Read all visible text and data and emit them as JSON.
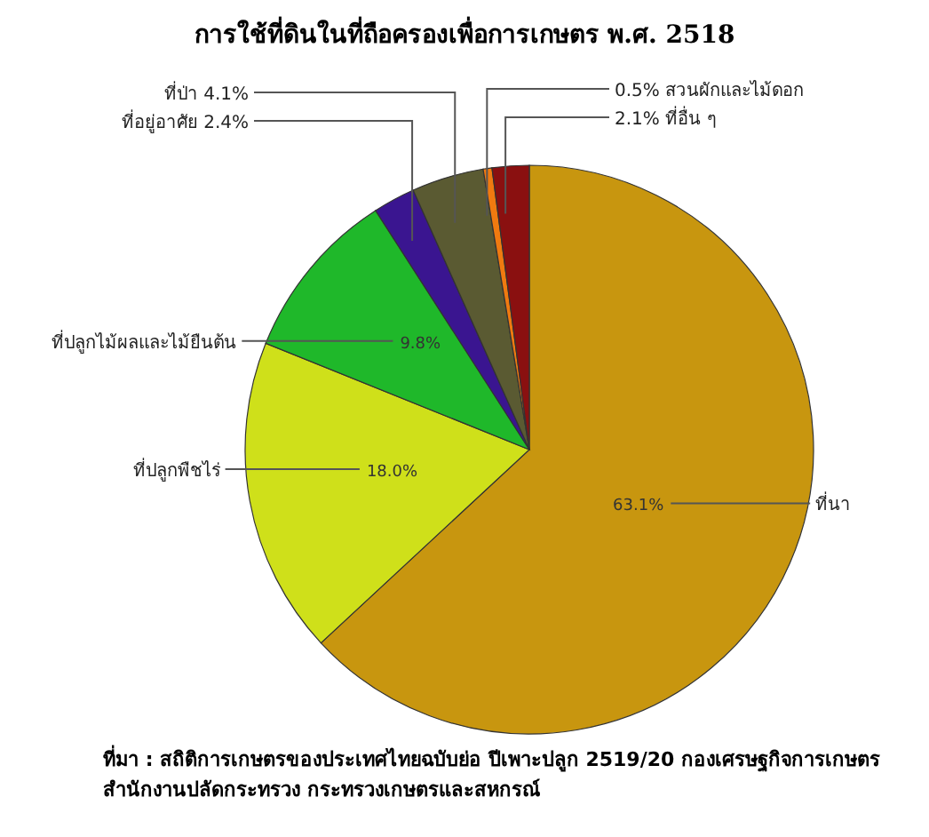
{
  "chart_data": {
    "type": "pie",
    "title": "การใช้ที่ดินในที่ถือครองเพื่อการเกษตร พ.ศ. 2518",
    "categories": [
      "ที่นา",
      "ที่ปลูกพืชไร่",
      "ที่ปลูกไม้ผลและไม้ยืนต้น",
      "ที่อยู่อาศัย",
      "ที่ป่า",
      "สวนผักและไม้ดอก",
      "ที่อื่น ๆ"
    ],
    "values": [
      63.1,
      18.0,
      9.8,
      2.4,
      4.1,
      0.5,
      2.1
    ],
    "value_labels": [
      "63.1%",
      "18.0%",
      "9.8%",
      "2.4%",
      "4.1%",
      "0.5%",
      "2.1%"
    ],
    "colors": [
      "#c8960f",
      "#cfe01a",
      "#1fb82a",
      "#3a1590",
      "#5a5a32",
      "#f07a10",
      "#8a1010"
    ],
    "annotations": [
      "ที่มา : สถิติการเกษตรของประเทศไทยฉบับย่อ ปีเพาะปลูก 2519/20 กองเศรษฐกิจการเกษตร สำนักงานปลัดกระทรวง กระทรวงเกษตรและสหกรณ์"
    ]
  }
}
